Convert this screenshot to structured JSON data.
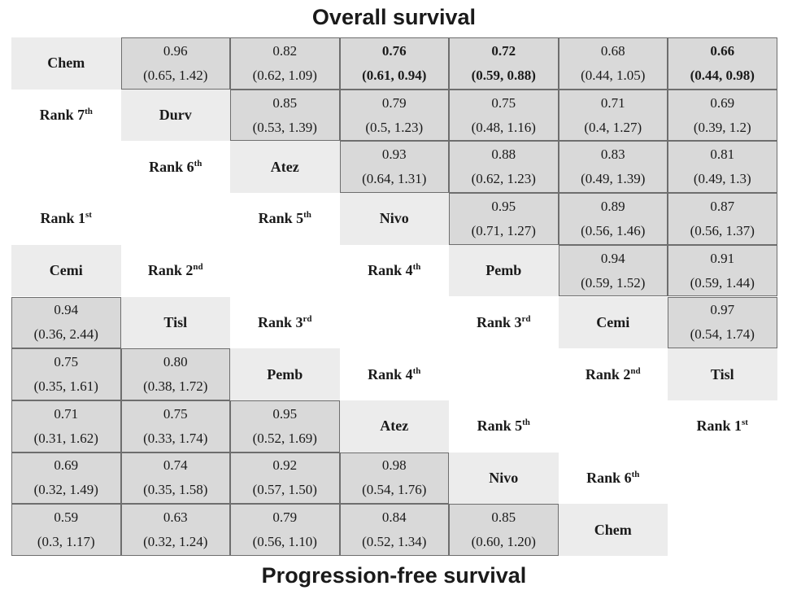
{
  "titles": {
    "top": "Overall survival",
    "bottom": "Progression-free survival"
  },
  "drugs": [
    {
      "row": 0,
      "col": 0,
      "label": "Chem"
    },
    {
      "row": 1,
      "col": 1,
      "label": "Durv"
    },
    {
      "row": 2,
      "col": 2,
      "label": "Atez"
    },
    {
      "row": 3,
      "col": 3,
      "label": "Nivo"
    },
    {
      "row": 4,
      "col": 4,
      "label": "Pemb"
    },
    {
      "row": 5,
      "col": 5,
      "label": "Cemi"
    },
    {
      "row": 6,
      "col": 6,
      "label": "Tisl"
    },
    {
      "row": 4,
      "col": 0,
      "label": "Cemi"
    },
    {
      "row": 5,
      "col": 1,
      "label": "Tisl"
    },
    {
      "row": 6,
      "col": 2,
      "label": "Pemb"
    },
    {
      "row": 7,
      "col": 3,
      "label": "Atez"
    },
    {
      "row": 8,
      "col": 4,
      "label": "Nivo"
    },
    {
      "row": 9,
      "col": 5,
      "label": "Chem"
    }
  ],
  "ranks": [
    {
      "row": 1,
      "col": 0,
      "text": "Rank 7",
      "sup": "th"
    },
    {
      "row": 2,
      "col": 1,
      "text": "Rank 6",
      "sup": "th"
    },
    {
      "row": 3,
      "col": 0,
      "text": "Rank 1",
      "sup": "st"
    },
    {
      "row": 3,
      "col": 2,
      "text": "Rank 5",
      "sup": "th"
    },
    {
      "row": 4,
      "col": 1,
      "text": "Rank 2",
      "sup": "nd"
    },
    {
      "row": 4,
      "col": 3,
      "text": "Rank 4",
      "sup": "th"
    },
    {
      "row": 5,
      "col": 2,
      "text": "Rank 3",
      "sup": "rd"
    },
    {
      "row": 5,
      "col": 4,
      "text": "Rank 3",
      "sup": "rd"
    },
    {
      "row": 6,
      "col": 3,
      "text": "Rank 4",
      "sup": "th"
    },
    {
      "row": 6,
      "col": 5,
      "text": "Rank 2",
      "sup": "nd"
    },
    {
      "row": 7,
      "col": 4,
      "text": "Rank 5",
      "sup": "th"
    },
    {
      "row": 7,
      "col": 6,
      "text": "Rank 1",
      "sup": "st"
    },
    {
      "row": 8,
      "col": 5,
      "text": "Rank 6",
      "sup": "th"
    }
  ],
  "values": [
    {
      "row": 0,
      "col": 1,
      "est": "0.96",
      "ci": "(0.65, 1.42)",
      "bold": false
    },
    {
      "row": 0,
      "col": 2,
      "est": "0.82",
      "ci": "(0.62, 1.09)",
      "bold": false
    },
    {
      "row": 0,
      "col": 3,
      "est": "0.76",
      "ci": "(0.61, 0.94)",
      "bold": true
    },
    {
      "row": 0,
      "col": 4,
      "est": "0.72",
      "ci": "(0.59, 0.88)",
      "bold": true
    },
    {
      "row": 0,
      "col": 5,
      "est": "0.68",
      "ci": "(0.44, 1.05)",
      "bold": false
    },
    {
      "row": 0,
      "col": 6,
      "est": "0.66",
      "ci": "(0.44, 0.98)",
      "bold": true
    },
    {
      "row": 1,
      "col": 2,
      "est": "0.85",
      "ci": "(0.53, 1.39)",
      "bold": false
    },
    {
      "row": 1,
      "col": 3,
      "est": "0.79",
      "ci": "(0.5, 1.23)",
      "bold": false
    },
    {
      "row": 1,
      "col": 4,
      "est": "0.75",
      "ci": "(0.48, 1.16)",
      "bold": false
    },
    {
      "row": 1,
      "col": 5,
      "est": "0.71",
      "ci": "(0.4, 1.27)",
      "bold": false
    },
    {
      "row": 1,
      "col": 6,
      "est": "0.69",
      "ci": "(0.39, 1.2)",
      "bold": false
    },
    {
      "row": 2,
      "col": 3,
      "est": "0.93",
      "ci": "(0.64, 1.31)",
      "bold": false
    },
    {
      "row": 2,
      "col": 4,
      "est": "0.88",
      "ci": "(0.62, 1.23)",
      "bold": false
    },
    {
      "row": 2,
      "col": 5,
      "est": "0.83",
      "ci": "(0.49, 1.39)",
      "bold": false
    },
    {
      "row": 2,
      "col": 6,
      "est": "0.81",
      "ci": "(0.49, 1.3)",
      "bold": false
    },
    {
      "row": 3,
      "col": 4,
      "est": "0.95",
      "ci": "(0.71, 1.27)",
      "bold": false
    },
    {
      "row": 3,
      "col": 5,
      "est": "0.89",
      "ci": "(0.56, 1.46)",
      "bold": false
    },
    {
      "row": 3,
      "col": 6,
      "est": "0.87",
      "ci": "(0.56, 1.37)",
      "bold": false
    },
    {
      "row": 4,
      "col": 5,
      "est": "0.94",
      "ci": "(0.59, 1.52)",
      "bold": false
    },
    {
      "row": 4,
      "col": 6,
      "est": "0.91",
      "ci": "(0.59, 1.44)",
      "bold": false
    },
    {
      "row": 5,
      "col": 6,
      "est": "0.97",
      "ci": "(0.54, 1.74)",
      "bold": false
    },
    {
      "row": 5,
      "col": 0,
      "est": "0.94",
      "ci": "(0.36, 2.44)",
      "bold": false
    },
    {
      "row": 6,
      "col": 0,
      "est": "0.75",
      "ci": "(0.35, 1.61)",
      "bold": false
    },
    {
      "row": 6,
      "col": 1,
      "est": "0.80",
      "ci": "(0.38, 1.72)",
      "bold": false
    },
    {
      "row": 7,
      "col": 0,
      "est": "0.71",
      "ci": "(0.31, 1.62)",
      "bold": false
    },
    {
      "row": 7,
      "col": 1,
      "est": "0.75",
      "ci": "(0.33, 1.74)",
      "bold": false
    },
    {
      "row": 7,
      "col": 2,
      "est": "0.95",
      "ci": "(0.52, 1.69)",
      "bold": false
    },
    {
      "row": 8,
      "col": 0,
      "est": "0.69",
      "ci": "(0.32, 1.49)",
      "bold": false
    },
    {
      "row": 8,
      "col": 1,
      "est": "0.74",
      "ci": "(0.35, 1.58)",
      "bold": false
    },
    {
      "row": 8,
      "col": 2,
      "est": "0.92",
      "ci": "(0.57, 1.50)",
      "bold": false
    },
    {
      "row": 8,
      "col": 3,
      "est": "0.98",
      "ci": "(0.54, 1.76)",
      "bold": false
    },
    {
      "row": 9,
      "col": 0,
      "est": "0.59",
      "ci": "(0.3, 1.17)",
      "bold": false
    },
    {
      "row": 9,
      "col": 1,
      "est": "0.63",
      "ci": "(0.32, 1.24)",
      "bold": false
    },
    {
      "row": 9,
      "col": 2,
      "est": "0.79",
      "ci": "(0.56, 1.10)",
      "bold": false
    },
    {
      "row": 9,
      "col": 3,
      "est": "0.84",
      "ci": "(0.52, 1.34)",
      "bold": false
    },
    {
      "row": 9,
      "col": 4,
      "est": "0.85",
      "ci": "(0.60, 1.20)",
      "bold": false
    }
  ]
}
